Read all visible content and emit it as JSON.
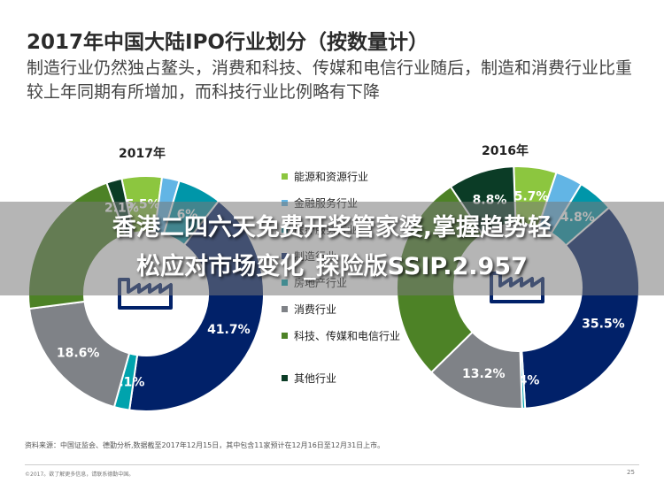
{
  "slide": {
    "title": "2017年中国大陆IPO行业划分（按数量计）",
    "subtitle": "制造行业仍然独占鳌头，消费和科技、传媒和电信行业随后，制造和消费行业比重较上年同期有所增加，而科技行业比例略有下降"
  },
  "overlay": {
    "line1": "香港二四六天免费开奖管家婆,掌握趋势轻",
    "line2": "松应对市场变化_探险版SSIP.2.957"
  },
  "legend": [
    {
      "label": "能源和资源行业",
      "color": "#8cc63f"
    },
    {
      "label": "金融服务行业",
      "color": "#62b5e5"
    },
    {
      "label": "医疗服务行业",
      "color": "#0096a9"
    },
    {
      "label": "制造行业",
      "color": "#012169"
    },
    {
      "label": "房地产行业",
      "color": "#00a3ad"
    },
    {
      "label": "消费行业",
      "color": "#7f8287"
    },
    {
      "label": "科技、传媒和电信行业",
      "color": "#4d8226"
    },
    {
      "label": "其他行业",
      "color": "#0b3c26"
    }
  ],
  "chart_data": [
    {
      "type": "pie",
      "title": "2017年",
      "categories": [
        "能源和资源行业",
        "金融服务行业",
        "医疗服务行业",
        "制造行业",
        "房地产行业",
        "消费行业",
        "科技、传媒和电信行业",
        "其他行业"
      ],
      "values": [
        5.5,
        2.4,
        6.0,
        41.7,
        2.1,
        18.6,
        21.6,
        2.1
      ],
      "visible_labels": [
        "5.5%",
        "",
        "6%",
        "41.7%",
        "2.1%",
        "18.6%",
        "",
        "2.1%"
      ],
      "colors": [
        "#8cc63f",
        "#62b5e5",
        "#0096a9",
        "#012169",
        "#00a3ad",
        "#7f8287",
        "#4d8226",
        "#0b3c26"
      ]
    },
    {
      "type": "pie",
      "title": "2016年",
      "categories": [
        "能源和资源行业",
        "金融服务行业",
        "医疗服务行业",
        "制造行业",
        "房地产行业",
        "消费行业",
        "科技、传媒和电信行业",
        "其他行业"
      ],
      "values": [
        5.7,
        3.6,
        4.8,
        35.5,
        0.4,
        13.2,
        28.0,
        8.8
      ],
      "visible_labels": [
        "5.7%",
        "",
        "4.8%",
        "35.5%",
        "0.4%",
        "13.2%",
        "",
        "8.8%"
      ],
      "colors": [
        "#8cc63f",
        "#62b5e5",
        "#0096a9",
        "#012169",
        "#00a3ad",
        "#7f8287",
        "#4d8226",
        "#0b3c26"
      ]
    }
  ],
  "source": "资料来源：中国证监会、德勤分析,数据截至2017年12月15日，其中包含11家预计在12月16日至12月31日上市。",
  "footer": {
    "left": "©2017。欲了解更多信息，请联系德勤中国。",
    "page": "25"
  }
}
